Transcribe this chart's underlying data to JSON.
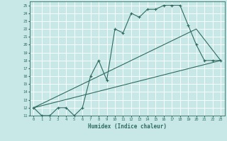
{
  "xlabel": "Humidex (Indice chaleur)",
  "bg_color": "#c8e8e8",
  "grid_color": "#ffffff",
  "line_color": "#2e6b5e",
  "xlim": [
    -0.5,
    23.5
  ],
  "ylim": [
    11,
    25.5
  ],
  "xticks": [
    0,
    1,
    2,
    3,
    4,
    5,
    6,
    7,
    8,
    9,
    10,
    11,
    12,
    13,
    14,
    15,
    16,
    17,
    18,
    19,
    20,
    21,
    22,
    23
  ],
  "yticks": [
    11,
    12,
    13,
    14,
    15,
    16,
    17,
    18,
    19,
    20,
    21,
    22,
    23,
    24,
    25
  ],
  "line1_x": [
    0,
    1,
    2,
    3,
    4,
    5,
    6,
    7,
    8,
    9,
    10,
    11,
    12,
    13,
    14,
    15,
    16,
    17,
    18,
    19,
    20,
    21,
    22,
    23
  ],
  "line1_y": [
    12,
    11,
    11,
    12,
    12,
    11,
    12,
    16,
    18,
    15.5,
    22,
    21.5,
    24,
    23.5,
    24.5,
    24.5,
    25,
    25,
    25,
    22.5,
    20,
    18,
    18,
    18
  ],
  "line2_x": [
    0,
    23
  ],
  "line2_y": [
    12,
    18
  ],
  "line3_x": [
    0,
    20,
    23
  ],
  "line3_y": [
    12,
    22,
    18
  ]
}
